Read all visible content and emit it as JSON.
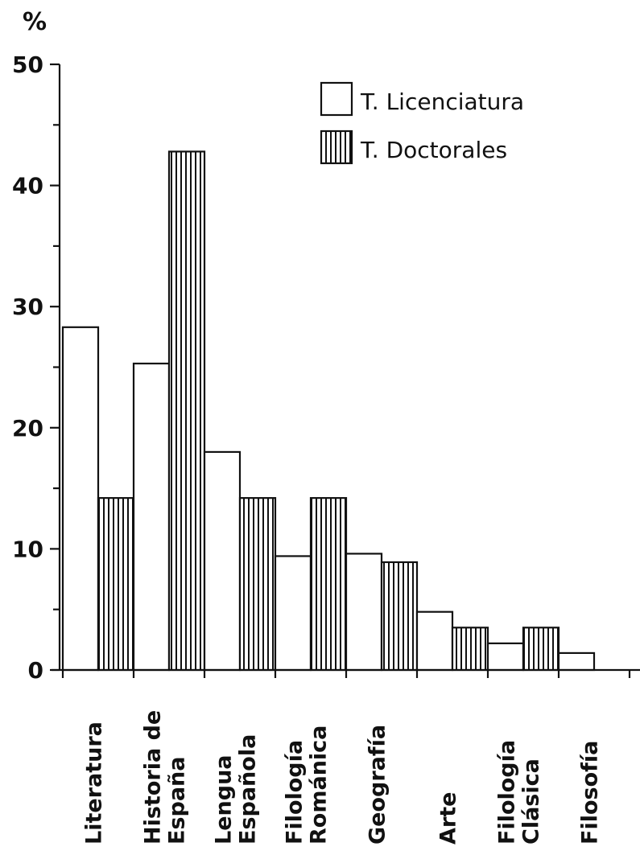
{
  "chart_data": {
    "type": "bar",
    "ylabel": "%",
    "ylim": [
      0,
      50
    ],
    "yticks": [
      0,
      10,
      20,
      30,
      40,
      50
    ],
    "legend_position": "top-right",
    "categories": [
      [
        "Literatura"
      ],
      [
        "Historia de",
        "España"
      ],
      [
        "Lengua",
        "Española"
      ],
      [
        "Filología",
        "Románica"
      ],
      [
        "Geografía"
      ],
      [
        "Arte"
      ],
      [
        "Filología",
        "Clásica"
      ],
      [
        "Filosofía"
      ]
    ],
    "series": [
      {
        "name": "T. Licenciatura",
        "pattern": "plain",
        "values": [
          28.3,
          25.3,
          18.0,
          9.4,
          9.6,
          4.8,
          2.2,
          1.4
        ]
      },
      {
        "name": "T. Doctorales",
        "pattern": "vertical-hatch",
        "values": [
          14.2,
          42.8,
          14.2,
          14.2,
          8.9,
          3.5,
          3.5,
          null
        ]
      }
    ],
    "colors": {
      "ink": "#111111",
      "background": "#ffffff"
    }
  }
}
